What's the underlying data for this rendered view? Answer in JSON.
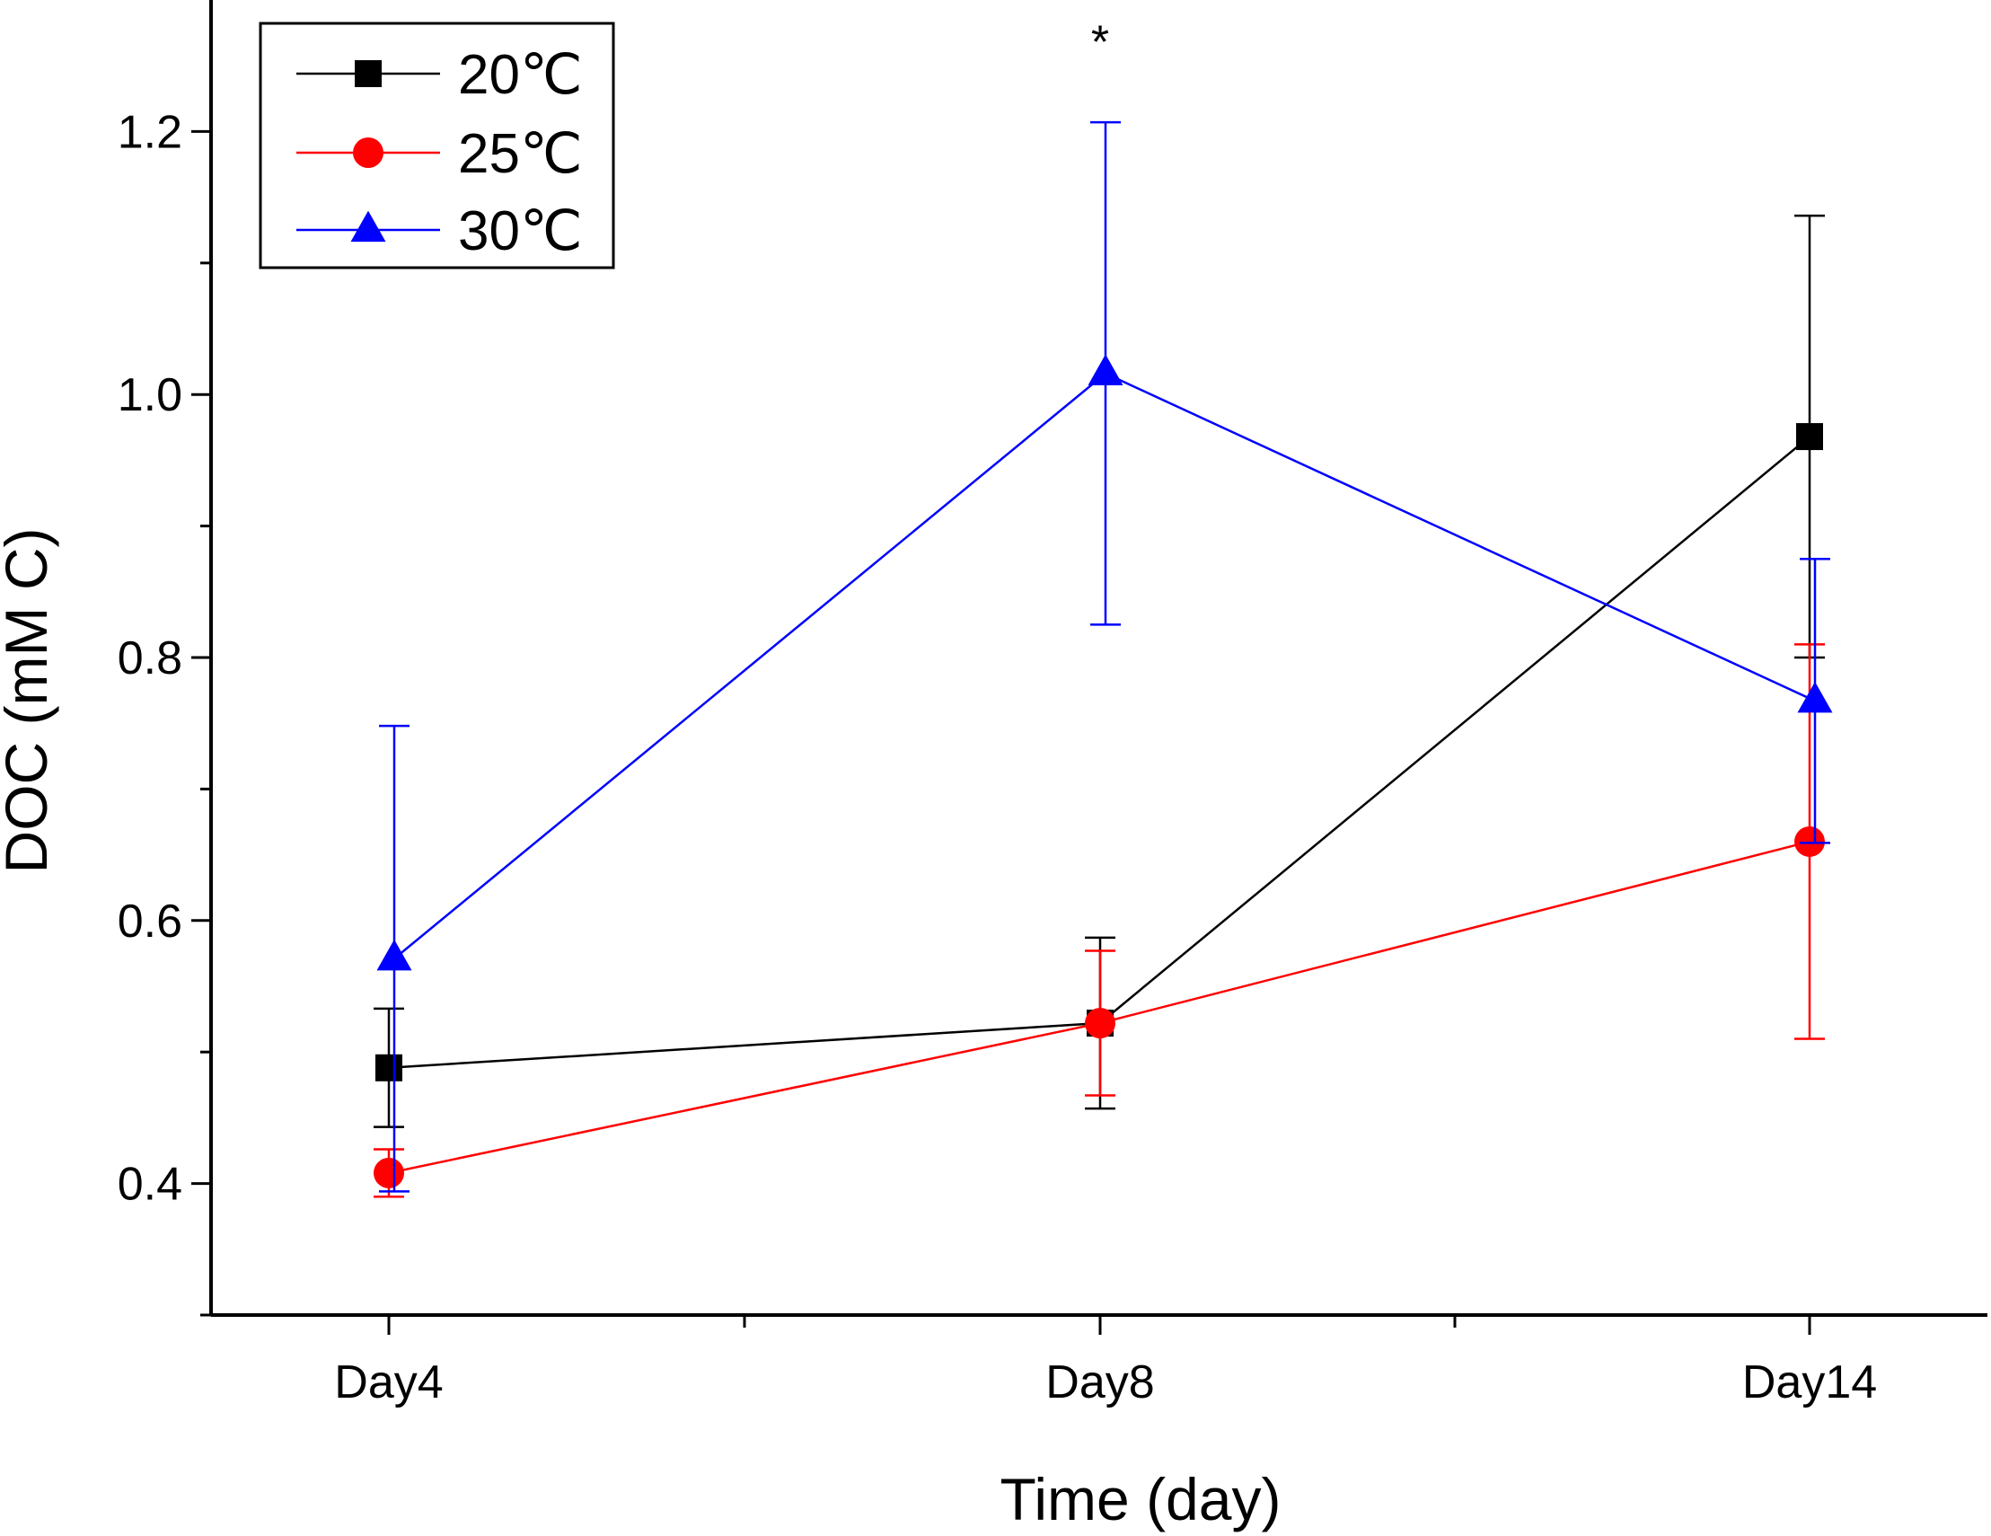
{
  "chart_data": {
    "type": "line",
    "title": "",
    "xlabel": "Time (day)",
    "ylabel": "DOC (mM C)",
    "categories": [
      "Day4",
      "Day8",
      "Day14"
    ],
    "ylim": [
      0.3,
      1.3
    ],
    "yticks": [
      "0.4",
      "0.6",
      "0.8",
      "1.0",
      "1.2"
    ],
    "grid": false,
    "legend_position": "top-left",
    "series": [
      {
        "name": "20℃",
        "color": "#000000",
        "marker": "square",
        "values": [
          0.488,
          0.522,
          0.968
        ],
        "errors": [
          0.045,
          0.065,
          0.168
        ]
      },
      {
        "name": "25℃",
        "color": "#ff0000",
        "marker": "circle",
        "values": [
          0.408,
          0.522,
          0.66
        ],
        "errors": [
          0.018,
          0.055,
          0.15
        ]
      },
      {
        "name": "30℃",
        "color": "#0000ff",
        "marker": "triangle",
        "values": [
          0.571,
          1.016,
          0.767
        ],
        "errors": [
          0.177,
          0.191,
          0.108
        ]
      }
    ],
    "annotations": [
      {
        "category": "Day8",
        "value": 1.275,
        "text": "*"
      }
    ]
  }
}
